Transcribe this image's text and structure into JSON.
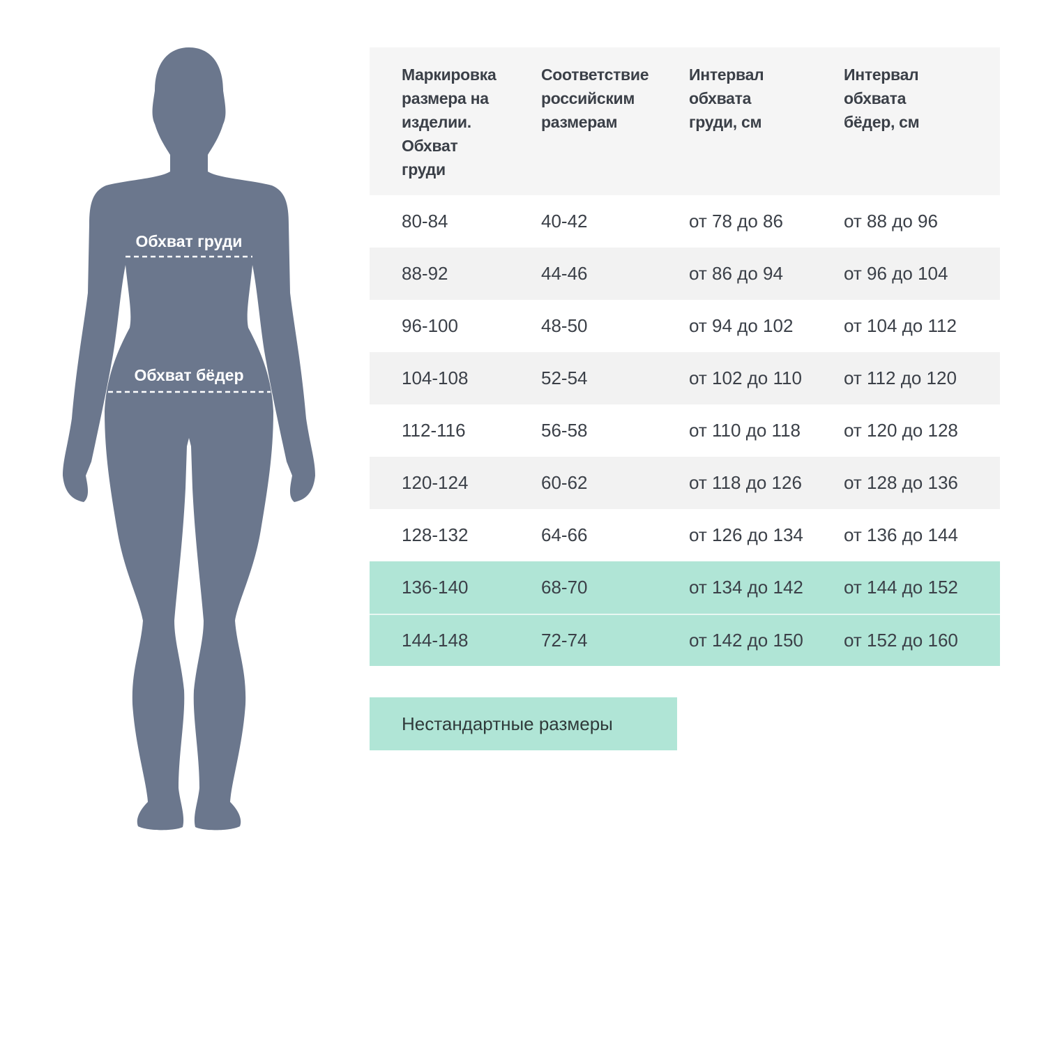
{
  "figure": {
    "color": "#6b778d",
    "labels": {
      "chest": "Обхват груди",
      "hips": "Обхват бёдер"
    }
  },
  "table": {
    "headers": [
      "Маркировка размера на изделии. Обхват груди",
      "Соответствие российским размерам",
      "Интервал обхвата груди, см",
      "Интервал обхвата бёдер, см"
    ],
    "rows": [
      [
        "80-84",
        "40-42",
        "от 78 до 86",
        "от 88 до 96"
      ],
      [
        "88-92",
        "44-46",
        "от 86 до 94",
        "от 96 до 104"
      ],
      [
        "96-100",
        "48-50",
        "от 94 до 102",
        "от 104 до 112"
      ],
      [
        "104-108",
        "52-54",
        "от 102 до 110",
        "от 112 до 120"
      ],
      [
        "112-116",
        "56-58",
        "от 110 до 118",
        "от 120 до 128"
      ],
      [
        "120-124",
        "60-62",
        "от 118 до 126",
        "от 128 до 136"
      ],
      [
        "128-132",
        "64-66",
        "от 126 до 134",
        "от 136 до 144"
      ],
      [
        "136-140",
        "68-70",
        "от 134 до 142",
        "от 144 до 152"
      ],
      [
        "144-148",
        "72-74",
        "от 142 до 150",
        "от 152 до 160"
      ]
    ],
    "highlight_color": "#b0e5d6"
  },
  "nonstandard_label": "Нестандартные размеры"
}
